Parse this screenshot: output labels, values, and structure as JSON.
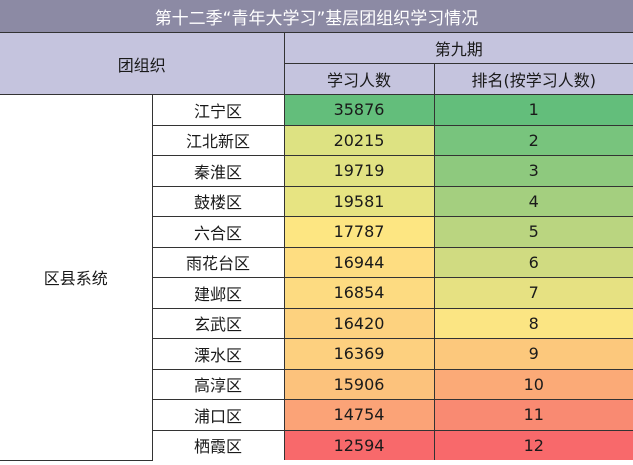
{
  "title": "第十二季“青年大学习”基层团组织学习情况",
  "header": {
    "org": "团组织",
    "period": "第九期",
    "col_learners": "学习人数",
    "col_rank": "排名(按学习人数)"
  },
  "group": "区县系统",
  "rows": [
    {
      "name": "江宁区",
      "count": "35876",
      "rank": "1",
      "count_color": "#63be7b",
      "rank_color": "#63be7b"
    },
    {
      "name": "江北新区",
      "count": "20215",
      "rank": "2",
      "count_color": "#dde282",
      "rank_color": "#78c47d"
    },
    {
      "name": "秦淮区",
      "count": "19719",
      "rank": "3",
      "count_color": "#e2e383",
      "rank_color": "#8ec97e"
    },
    {
      "name": "鼓楼区",
      "count": "19581",
      "rank": "4",
      "count_color": "#e7e482",
      "rank_color": "#a4cf7f"
    },
    {
      "name": "六合区",
      "count": "17787",
      "rank": "5",
      "count_color": "#fde682",
      "rank_color": "#bad580"
    },
    {
      "name": "雨花台区",
      "count": "16944",
      "rank": "6",
      "count_color": "#fedd81",
      "rank_color": "#d0db81"
    },
    {
      "name": "建邺区",
      "count": "16854",
      "rank": "7",
      "count_color": "#fddb81",
      "rank_color": "#e6e182"
    },
    {
      "name": "玄武区",
      "count": "16420",
      "rank": "8",
      "count_color": "#fdd27f",
      "rank_color": "#fbe583"
    },
    {
      "name": "溧水区",
      "count": "16369",
      "rank": "9",
      "count_color": "#fdd07f",
      "rank_color": "#fcc87c"
    },
    {
      "name": "高淳区",
      "count": "15906",
      "rank": "10",
      "count_color": "#fcc27c",
      "rank_color": "#fbaa77"
    },
    {
      "name": "浦口区",
      "count": "14754",
      "rank": "11",
      "count_color": "#fba377",
      "rank_color": "#f98a72"
    },
    {
      "name": "栖霞区",
      "count": "12594",
      "rank": "12",
      "count_color": "#f8696b",
      "rank_color": "#f8696b"
    }
  ]
}
